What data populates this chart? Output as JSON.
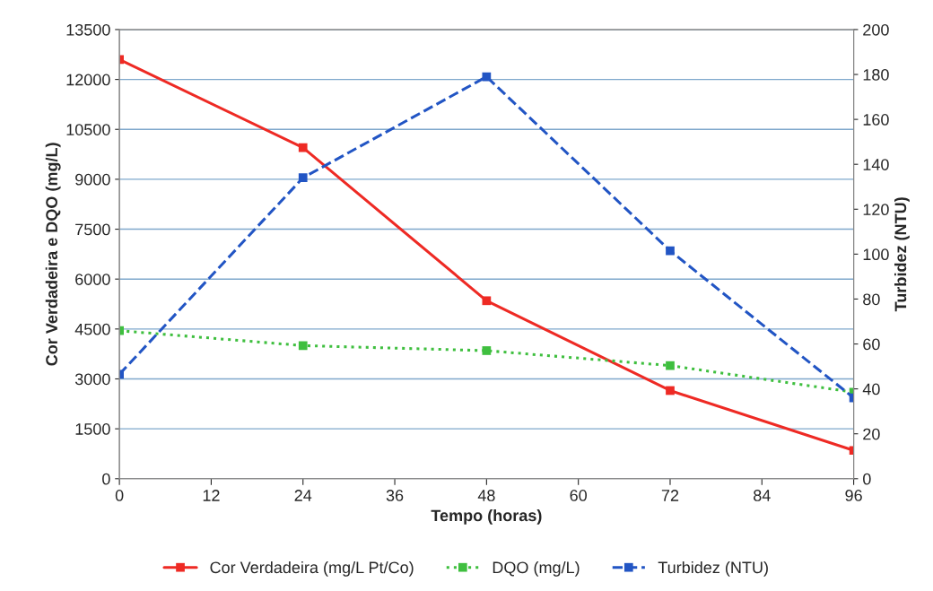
{
  "chart_data": {
    "type": "line",
    "xlabel": "Tempo (horas)",
    "ylabel": "Cor Verdadeira e DQO (mg/L)",
    "y2label": "Turbidez (NTU)",
    "x": [
      0,
      24,
      48,
      72,
      96
    ],
    "series": [
      {
        "name": "Cor Verdadeira (mg/L Pt/Co)",
        "color": "#ee2a24",
        "values": [
          12600,
          9950,
          5350,
          2650,
          850
        ],
        "line_style": "solid"
      },
      {
        "name": "DQO (mg/L)",
        "color": "#3fbf3f",
        "values": [
          4450,
          4000,
          3850,
          3400,
          2600
        ],
        "line_style": "dotted"
      },
      {
        "name": "Turbidez (NTU)",
        "color": "#2255c4",
        "values": [
          46.5,
          134,
          179,
          101.5,
          36
        ],
        "line_style": "dashed",
        "axis": "y2"
      }
    ],
    "marker": "square",
    "xlim": [
      0,
      96
    ],
    "xticks": [
      0,
      12,
      24,
      36,
      48,
      60,
      72,
      84,
      96
    ],
    "ylim": [
      0,
      13500
    ],
    "yticks": [
      0,
      1500,
      3000,
      4500,
      6000,
      7500,
      9000,
      10500,
      12000,
      13500
    ],
    "y2lim": [
      0,
      200
    ],
    "y2ticks": [
      0,
      20,
      40,
      60,
      80,
      100,
      120,
      140,
      160,
      180,
      200
    ],
    "grid": "y",
    "legend": "bottom"
  }
}
